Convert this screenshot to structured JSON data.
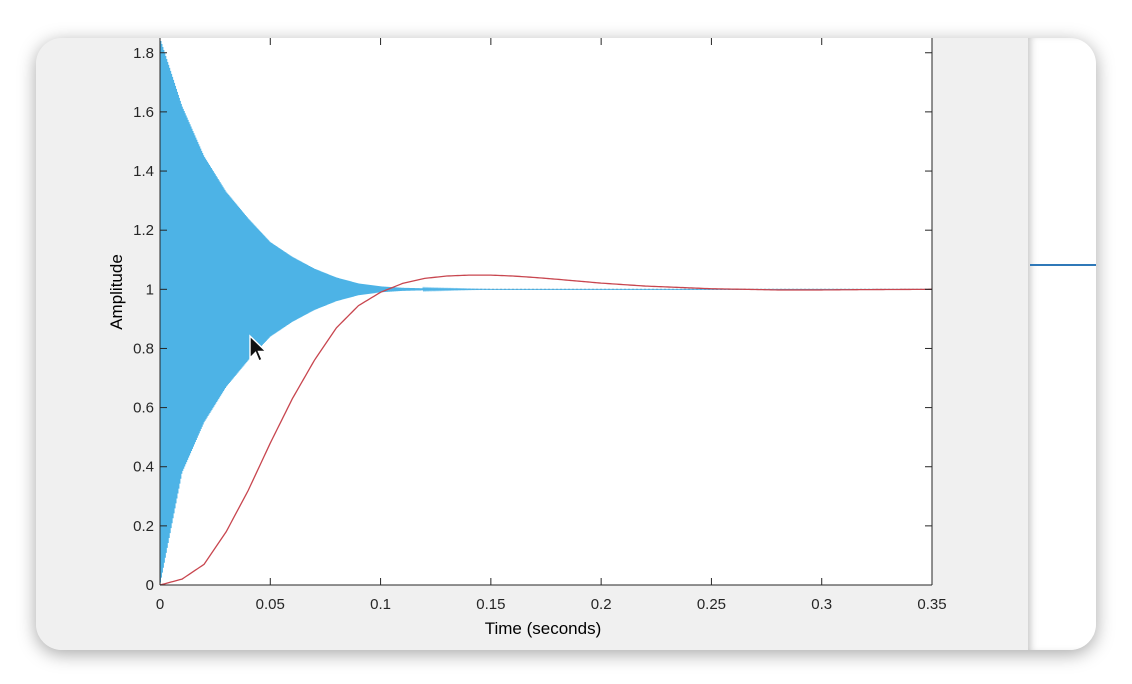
{
  "chart_data": {
    "type": "line",
    "title": "",
    "xlabel": "Time (seconds)",
    "ylabel": "Amplitude",
    "xlim": [
      0,
      0.35
    ],
    "ylim": [
      0,
      1.85
    ],
    "x_ticks": [
      "0",
      "0.05",
      "0.1",
      "0.15",
      "0.2",
      "0.25",
      "0.3",
      "0.35"
    ],
    "y_ticks": [
      "0",
      "0.2",
      "0.4",
      "0.6",
      "0.8",
      "1",
      "1.2",
      "1.4",
      "1.6",
      "1.8"
    ],
    "grid": false,
    "series": [
      {
        "color": "#4db3e6",
        "style": "fast oscillation inside a decaying envelope",
        "x": [
          0,
          0.01,
          0.02,
          0.03,
          0.04,
          0.05,
          0.06,
          0.07,
          0.08,
          0.09,
          0.1,
          0.11,
          0.12,
          0.15,
          0.2,
          0.25,
          0.3,
          0.35
        ],
        "envelope_upper": [
          1.85,
          1.62,
          1.45,
          1.33,
          1.24,
          1.16,
          1.11,
          1.07,
          1.04,
          1.02,
          1.01,
          1.005,
          1.003,
          1.0,
          1.0,
          1.0,
          1.0,
          1.0
        ],
        "envelope_lower": [
          0.0,
          0.38,
          0.55,
          0.67,
          0.76,
          0.84,
          0.89,
          0.93,
          0.96,
          0.98,
          0.99,
          0.995,
          0.997,
          1.0,
          1.0,
          1.0,
          1.0,
          1.0
        ]
      },
      {
        "color": "#c8464f",
        "style": "smooth step response",
        "x": [
          0,
          0.01,
          0.02,
          0.03,
          0.04,
          0.05,
          0.06,
          0.07,
          0.08,
          0.09,
          0.1,
          0.11,
          0.12,
          0.13,
          0.14,
          0.15,
          0.16,
          0.17,
          0.18,
          0.2,
          0.22,
          0.25,
          0.28,
          0.3,
          0.32,
          0.35
        ],
        "values": [
          0,
          0.02,
          0.07,
          0.18,
          0.32,
          0.48,
          0.63,
          0.76,
          0.87,
          0.945,
          0.99,
          1.02,
          1.037,
          1.045,
          1.048,
          1.048,
          1.045,
          1.04,
          1.034,
          1.021,
          1.011,
          1.002,
          0.998,
          0.998,
          0.999,
          1.0
        ]
      }
    ],
    "reference_line": {
      "y": 1.0,
      "style": "dotted",
      "color": "#555555"
    }
  }
}
